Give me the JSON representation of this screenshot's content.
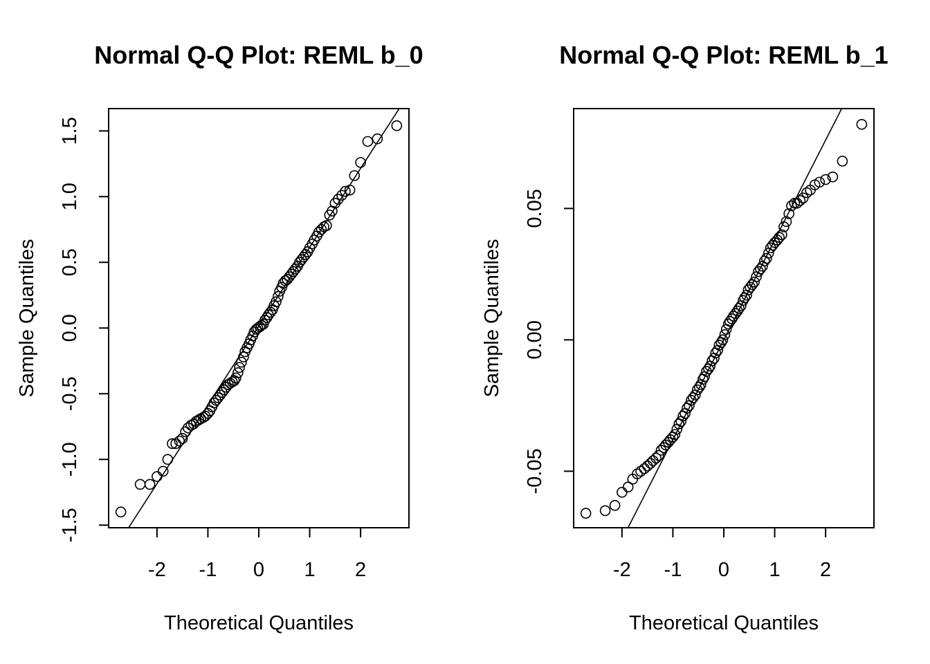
{
  "colors": {
    "background": "#ffffff",
    "ink": "#000000"
  },
  "chart_data": [
    {
      "type": "scatter",
      "title": "Normal Q-Q Plot: REML b_0",
      "xlabel": "Theoretical Quantiles",
      "ylabel": "Sample Quantiles",
      "xlim": [
        -2.95,
        2.95
      ],
      "ylim": [
        -1.52,
        1.67
      ],
      "xticks": [
        -2,
        -1,
        0,
        1,
        2
      ],
      "xtick_labels": [
        "-2",
        "-1",
        "0",
        "1",
        "2"
      ],
      "yticks": [
        -1.5,
        -1.0,
        -0.5,
        0.0,
        0.5,
        1.0,
        1.5
      ],
      "ytick_labels": [
        "-1.5",
        "-1.0",
        "-0.5",
        "0.0",
        "0.5",
        "1.0",
        "1.5"
      ],
      "reference_line": {
        "intercept": 0.015,
        "slope": 0.6
      },
      "points": [
        [
          -2.71,
          -1.4
        ],
        [
          -2.33,
          -1.19
        ],
        [
          -2.14,
          -1.19
        ],
        [
          -2.0,
          -1.13
        ],
        [
          -1.88,
          -1.09
        ],
        [
          -1.79,
          -1.0
        ],
        [
          -1.7,
          -0.88
        ],
        [
          -1.63,
          -0.88
        ],
        [
          -1.56,
          -0.86
        ],
        [
          -1.5,
          -0.84
        ],
        [
          -1.44,
          -0.79
        ],
        [
          -1.39,
          -0.76
        ],
        [
          -1.33,
          -0.74
        ],
        [
          -1.28,
          -0.73
        ],
        [
          -1.23,
          -0.71
        ],
        [
          -1.18,
          -0.7
        ],
        [
          -1.14,
          -0.69
        ],
        [
          -1.09,
          -0.68
        ],
        [
          -1.05,
          -0.67
        ],
        [
          -1.0,
          -0.65
        ],
        [
          -0.96,
          -0.63
        ],
        [
          -0.92,
          -0.6
        ],
        [
          -0.88,
          -0.57
        ],
        [
          -0.84,
          -0.55
        ],
        [
          -0.8,
          -0.53
        ],
        [
          -0.76,
          -0.51
        ],
        [
          -0.72,
          -0.49
        ],
        [
          -0.68,
          -0.47
        ],
        [
          -0.64,
          -0.45
        ],
        [
          -0.6,
          -0.43
        ],
        [
          -0.56,
          -0.42
        ],
        [
          -0.52,
          -0.41
        ],
        [
          -0.48,
          -0.4
        ],
        [
          -0.45,
          -0.38
        ],
        [
          -0.41,
          -0.34
        ],
        [
          -0.38,
          -0.3
        ],
        [
          -0.34,
          -0.26
        ],
        [
          -0.3,
          -0.22
        ],
        [
          -0.27,
          -0.18
        ],
        [
          -0.23,
          -0.15
        ],
        [
          -0.19,
          -0.12
        ],
        [
          -0.16,
          -0.09
        ],
        [
          -0.12,
          -0.06
        ],
        [
          -0.09,
          -0.03
        ],
        [
          -0.05,
          -0.01
        ],
        [
          -0.02,
          0.0
        ],
        [
          0.02,
          0.01
        ],
        [
          0.05,
          0.02
        ],
        [
          0.09,
          0.03
        ],
        [
          0.12,
          0.06
        ],
        [
          0.16,
          0.08
        ],
        [
          0.19,
          0.1
        ],
        [
          0.23,
          0.12
        ],
        [
          0.27,
          0.14
        ],
        [
          0.3,
          0.17
        ],
        [
          0.34,
          0.2
        ],
        [
          0.38,
          0.24
        ],
        [
          0.41,
          0.28
        ],
        [
          0.45,
          0.31
        ],
        [
          0.48,
          0.34
        ],
        [
          0.52,
          0.36
        ],
        [
          0.56,
          0.37
        ],
        [
          0.6,
          0.39
        ],
        [
          0.64,
          0.41
        ],
        [
          0.68,
          0.43
        ],
        [
          0.72,
          0.45
        ],
        [
          0.76,
          0.47
        ],
        [
          0.8,
          0.5
        ],
        [
          0.84,
          0.52
        ],
        [
          0.88,
          0.54
        ],
        [
          0.92,
          0.56
        ],
        [
          0.96,
          0.58
        ],
        [
          1.0,
          0.61
        ],
        [
          1.05,
          0.64
        ],
        [
          1.09,
          0.67
        ],
        [
          1.14,
          0.7
        ],
        [
          1.18,
          0.73
        ],
        [
          1.23,
          0.75
        ],
        [
          1.28,
          0.77
        ],
        [
          1.33,
          0.78
        ],
        [
          1.39,
          0.86
        ],
        [
          1.44,
          0.89
        ],
        [
          1.5,
          0.95
        ],
        [
          1.56,
          0.98
        ],
        [
          1.63,
          1.01
        ],
        [
          1.7,
          1.04
        ],
        [
          1.79,
          1.05
        ],
        [
          1.88,
          1.16
        ],
        [
          2.0,
          1.26
        ],
        [
          2.14,
          1.42
        ],
        [
          2.33,
          1.44
        ],
        [
          2.71,
          1.54
        ]
      ]
    },
    {
      "type": "scatter",
      "title": "Normal Q-Q Plot: REML b_1",
      "xlabel": "Theoretical Quantiles",
      "ylabel": "Sample Quantiles",
      "xlim": [
        -2.95,
        2.95
      ],
      "ylim": [
        -0.0715,
        0.088
      ],
      "xticks": [
        -2,
        -1,
        0,
        1,
        2
      ],
      "xtick_labels": [
        "-2",
        "-1",
        "0",
        "1",
        "2"
      ],
      "yticks": [
        -0.05,
        0.0,
        0.05
      ],
      "ytick_labels": [
        "-0.05",
        "0.00",
        "0.05"
      ],
      "reference_line": {
        "intercept": 0.0,
        "slope": 0.038
      },
      "points": [
        [
          -2.71,
          -0.066
        ],
        [
          -2.33,
          -0.065
        ],
        [
          -2.14,
          -0.063
        ],
        [
          -2.0,
          -0.058
        ],
        [
          -1.88,
          -0.056
        ],
        [
          -1.79,
          -0.053
        ],
        [
          -1.7,
          -0.051
        ],
        [
          -1.63,
          -0.05
        ],
        [
          -1.56,
          -0.049
        ],
        [
          -1.5,
          -0.048
        ],
        [
          -1.44,
          -0.047
        ],
        [
          -1.39,
          -0.046
        ],
        [
          -1.33,
          -0.045
        ],
        [
          -1.28,
          -0.044
        ],
        [
          -1.23,
          -0.042
        ],
        [
          -1.18,
          -0.041
        ],
        [
          -1.14,
          -0.04
        ],
        [
          -1.09,
          -0.039
        ],
        [
          -1.05,
          -0.038
        ],
        [
          -1.0,
          -0.037
        ],
        [
          -0.96,
          -0.036
        ],
        [
          -0.92,
          -0.034
        ],
        [
          -0.88,
          -0.032
        ],
        [
          -0.84,
          -0.031
        ],
        [
          -0.8,
          -0.029
        ],
        [
          -0.76,
          -0.028
        ],
        [
          -0.72,
          -0.026
        ],
        [
          -0.68,
          -0.025
        ],
        [
          -0.64,
          -0.023
        ],
        [
          -0.6,
          -0.022
        ],
        [
          -0.56,
          -0.021
        ],
        [
          -0.52,
          -0.019
        ],
        [
          -0.48,
          -0.018
        ],
        [
          -0.45,
          -0.017
        ],
        [
          -0.41,
          -0.015
        ],
        [
          -0.38,
          -0.014
        ],
        [
          -0.34,
          -0.012
        ],
        [
          -0.3,
          -0.011
        ],
        [
          -0.27,
          -0.01
        ],
        [
          -0.23,
          -0.008
        ],
        [
          -0.19,
          -0.007
        ],
        [
          -0.16,
          -0.005
        ],
        [
          -0.12,
          -0.004
        ],
        [
          -0.09,
          -0.002
        ],
        [
          -0.05,
          -0.001
        ],
        [
          -0.02,
          0.0
        ],
        [
          0.02,
          0.002
        ],
        [
          0.05,
          0.004
        ],
        [
          0.09,
          0.006
        ],
        [
          0.12,
          0.007
        ],
        [
          0.16,
          0.008
        ],
        [
          0.19,
          0.009
        ],
        [
          0.23,
          0.01
        ],
        [
          0.27,
          0.011
        ],
        [
          0.3,
          0.012
        ],
        [
          0.34,
          0.013
        ],
        [
          0.38,
          0.015
        ],
        [
          0.41,
          0.016
        ],
        [
          0.45,
          0.017
        ],
        [
          0.48,
          0.019
        ],
        [
          0.52,
          0.02
        ],
        [
          0.56,
          0.021
        ],
        [
          0.6,
          0.022
        ],
        [
          0.64,
          0.024
        ],
        [
          0.68,
          0.026
        ],
        [
          0.72,
          0.027
        ],
        [
          0.76,
          0.028
        ],
        [
          0.8,
          0.03
        ],
        [
          0.84,
          0.031
        ],
        [
          0.88,
          0.033
        ],
        [
          0.92,
          0.035
        ],
        [
          0.96,
          0.036
        ],
        [
          1.0,
          0.037
        ],
        [
          1.05,
          0.038
        ],
        [
          1.09,
          0.039
        ],
        [
          1.14,
          0.04
        ],
        [
          1.18,
          0.043
        ],
        [
          1.23,
          0.045
        ],
        [
          1.28,
          0.048
        ],
        [
          1.33,
          0.051
        ],
        [
          1.39,
          0.052
        ],
        [
          1.44,
          0.052
        ],
        [
          1.5,
          0.053
        ],
        [
          1.56,
          0.054
        ],
        [
          1.63,
          0.056
        ],
        [
          1.7,
          0.057
        ],
        [
          1.79,
          0.059
        ],
        [
          1.88,
          0.06
        ],
        [
          2.0,
          0.061
        ],
        [
          2.14,
          0.062
        ],
        [
          2.33,
          0.068
        ],
        [
          2.71,
          0.082
        ]
      ]
    }
  ]
}
